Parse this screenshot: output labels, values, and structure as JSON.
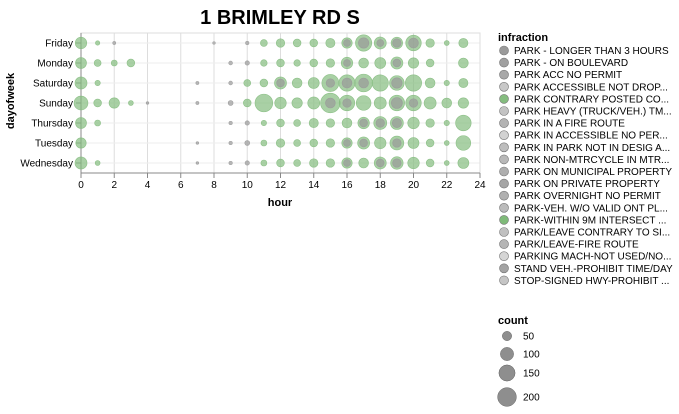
{
  "chart_data": {
    "type": "scatter",
    "title": "1 BRIMLEY RD S",
    "xlabel": "hour",
    "ylabel": "dayofweek",
    "xlim": [
      0,
      24
    ],
    "x_ticks": [
      0,
      2,
      4,
      6,
      8,
      10,
      12,
      14,
      16,
      18,
      20,
      22,
      24
    ],
    "categories": [
      "Friday",
      "Monday",
      "Saturday",
      "Sunday",
      "Thursday",
      "Tuesday",
      "Wednesday"
    ],
    "grid": true,
    "legend": {
      "position": "right",
      "color_title": "infraction",
      "color_items": [
        {
          "label": "PARK - LONGER THAN 3 HOURS",
          "color": "#9a9a9a"
        },
        {
          "label": "PARK - ON BOULEVARD",
          "color": "#a0a0a0"
        },
        {
          "label": "PARK ACC NO PERMIT",
          "color": "#a8a8a8"
        },
        {
          "label": "PARK ACCESSIBLE NOT DROP...",
          "color": "#c8c8c8"
        },
        {
          "label": "PARK CONTRARY POSTED CO...",
          "color": "#85bc7f"
        },
        {
          "label": "PARK HEAVY (TRUCK/VEH.) TM...",
          "color": "#c3c3c3"
        },
        {
          "label": "PARK IN A FIRE ROUTE",
          "color": "#b3b3b3"
        },
        {
          "label": "PARK IN ACCESSIBLE NO PER...",
          "color": "#d2d2d2"
        },
        {
          "label": "PARK IN PARK NOT IN DESIG A...",
          "color": "#bdbdbd"
        },
        {
          "label": "PARK NON-MTRCYCLE IN MTR...",
          "color": "#b8b8b8"
        },
        {
          "label": "PARK ON MUNICIPAL PROPERTY",
          "color": "#aeaeae"
        },
        {
          "label": "PARK ON PRIVATE PROPERTY",
          "color": "#a5a5a5"
        },
        {
          "label": "PARK OVERNIGHT NO PERMIT",
          "color": "#b0b0b0"
        },
        {
          "label": "PARK-VEH. W/O VALID ONT PL...",
          "color": "#bbbbbb"
        },
        {
          "label": "PARK-WITHIN 9M INTERSECT ...",
          "color": "#7fba79"
        },
        {
          "label": "PARK/LEAVE CONTRARY TO SI...",
          "color": "#c0c0c0"
        },
        {
          "label": "PARK/LEAVE-FIRE ROUTE",
          "color": "#b5b5b5"
        },
        {
          "label": "PARKING MACH-NOT USED/NO...",
          "color": "#d5d5d5"
        },
        {
          "label": "STAND VEH.-PROHIBIT TIME/DAY",
          "color": "#a3a3a3"
        },
        {
          "label": "STOP-SIGNED HWY-PROHIBIT ...",
          "color": "#c5c5c5"
        }
      ],
      "size_title": "count",
      "size_items": [
        50,
        100,
        150,
        200
      ]
    },
    "points": [
      {
        "day": "Friday",
        "hour": 0,
        "count": 55,
        "color": "#85bc7f"
      },
      {
        "day": "Friday",
        "hour": 1,
        "count": 8,
        "color": "#85bc7f"
      },
      {
        "day": "Friday",
        "hour": 2,
        "count": 4,
        "color": "#9a9a9a"
      },
      {
        "day": "Friday",
        "hour": 8,
        "count": 3,
        "color": "#a0a0a0"
      },
      {
        "day": "Friday",
        "hour": 10,
        "count": 5,
        "color": "#9a9a9a"
      },
      {
        "day": "Friday",
        "hour": 11,
        "count": 20,
        "color": "#85bc7f"
      },
      {
        "day": "Friday",
        "hour": 12,
        "count": 30,
        "color": "#85bc7f"
      },
      {
        "day": "Friday",
        "hour": 13,
        "count": 25,
        "color": "#85bc7f"
      },
      {
        "day": "Friday",
        "hour": 14,
        "count": 25,
        "color": "#85bc7f"
      },
      {
        "day": "Friday",
        "hour": 15,
        "count": 35,
        "color": "#85bc7f"
      },
      {
        "day": "Friday",
        "hour": 16,
        "count": 45,
        "color": "#85bc7f"
      },
      {
        "day": "Friday",
        "hour": 17,
        "count": 110,
        "color": "#85bc7f"
      },
      {
        "day": "Friday",
        "hour": 18,
        "count": 60,
        "color": "#85bc7f"
      },
      {
        "day": "Friday",
        "hour": 19,
        "count": 55,
        "color": "#85bc7f"
      },
      {
        "day": "Friday",
        "hour": 20,
        "count": 100,
        "color": "#85bc7f"
      },
      {
        "day": "Friday",
        "hour": 21,
        "count": 30,
        "color": "#85bc7f"
      },
      {
        "day": "Friday",
        "hour": 22,
        "count": 10,
        "color": "#85bc7f"
      },
      {
        "day": "Friday",
        "hour": 23,
        "count": 35,
        "color": "#85bc7f"
      },
      {
        "day": "Friday",
        "hour": 16,
        "count": 20,
        "color": "#9a9a9a"
      },
      {
        "day": "Friday",
        "hour": 17,
        "count": 45,
        "color": "#9a9a9a"
      },
      {
        "day": "Friday",
        "hour": 18,
        "count": 20,
        "color": "#9a9a9a"
      },
      {
        "day": "Friday",
        "hour": 19,
        "count": 30,
        "color": "#9a9a9a"
      },
      {
        "day": "Friday",
        "hour": 20,
        "count": 40,
        "color": "#9a9a9a"
      },
      {
        "day": "Monday",
        "hour": 0,
        "count": 50,
        "color": "#85bc7f"
      },
      {
        "day": "Monday",
        "hour": 1,
        "count": 20,
        "color": "#85bc7f"
      },
      {
        "day": "Monday",
        "hour": 2,
        "count": 15,
        "color": "#85bc7f"
      },
      {
        "day": "Monday",
        "hour": 3,
        "count": 25,
        "color": "#85bc7f"
      },
      {
        "day": "Monday",
        "hour": 9,
        "count": 6,
        "color": "#9a9a9a"
      },
      {
        "day": "Monday",
        "hour": 10,
        "count": 8,
        "color": "#9a9a9a"
      },
      {
        "day": "Monday",
        "hour": 11,
        "count": 18,
        "color": "#85bc7f"
      },
      {
        "day": "Monday",
        "hour": 12,
        "count": 25,
        "color": "#85bc7f"
      },
      {
        "day": "Monday",
        "hour": 13,
        "count": 18,
        "color": "#85bc7f"
      },
      {
        "day": "Monday",
        "hour": 14,
        "count": 25,
        "color": "#85bc7f"
      },
      {
        "day": "Monday",
        "hour": 15,
        "count": 30,
        "color": "#85bc7f"
      },
      {
        "day": "Monday",
        "hour": 16,
        "count": 55,
        "color": "#85bc7f"
      },
      {
        "day": "Monday",
        "hour": 17,
        "count": 40,
        "color": "#85bc7f"
      },
      {
        "day": "Monday",
        "hour": 18,
        "count": 50,
        "color": "#85bc7f"
      },
      {
        "day": "Monday",
        "hour": 19,
        "count": 60,
        "color": "#85bc7f"
      },
      {
        "day": "Monday",
        "hour": 20,
        "count": 45,
        "color": "#85bc7f"
      },
      {
        "day": "Monday",
        "hour": 21,
        "count": 25,
        "color": "#85bc7f"
      },
      {
        "day": "Monday",
        "hour": 23,
        "count": 40,
        "color": "#85bc7f"
      },
      {
        "day": "Monday",
        "hour": 16,
        "count": 20,
        "color": "#9a9a9a"
      },
      {
        "day": "Monday",
        "hour": 19,
        "count": 25,
        "color": "#9a9a9a"
      },
      {
        "day": "Saturday",
        "hour": 0,
        "count": 60,
        "color": "#85bc7f"
      },
      {
        "day": "Saturday",
        "hour": 1,
        "count": 12,
        "color": "#85bc7f"
      },
      {
        "day": "Saturday",
        "hour": 7,
        "count": 4,
        "color": "#9a9a9a"
      },
      {
        "day": "Saturday",
        "hour": 9,
        "count": 6,
        "color": "#9a9a9a"
      },
      {
        "day": "Saturday",
        "hour": 10,
        "count": 20,
        "color": "#85bc7f"
      },
      {
        "day": "Saturday",
        "hour": 11,
        "count": 25,
        "color": "#85bc7f"
      },
      {
        "day": "Saturday",
        "hour": 12,
        "count": 60,
        "color": "#85bc7f"
      },
      {
        "day": "Saturday",
        "hour": 13,
        "count": 40,
        "color": "#85bc7f"
      },
      {
        "day": "Saturday",
        "hour": 14,
        "count": 50,
        "color": "#85bc7f"
      },
      {
        "day": "Saturday",
        "hour": 15,
        "count": 120,
        "color": "#85bc7f"
      },
      {
        "day": "Saturday",
        "hour": 16,
        "count": 110,
        "color": "#85bc7f"
      },
      {
        "day": "Saturday",
        "hour": 17,
        "count": 130,
        "color": "#85bc7f"
      },
      {
        "day": "Saturday",
        "hour": 18,
        "count": 110,
        "color": "#85bc7f"
      },
      {
        "day": "Saturday",
        "hour": 19,
        "count": 90,
        "color": "#85bc7f"
      },
      {
        "day": "Saturday",
        "hour": 20,
        "count": 110,
        "color": "#85bc7f"
      },
      {
        "day": "Saturday",
        "hour": 21,
        "count": 40,
        "color": "#85bc7f"
      },
      {
        "day": "Saturday",
        "hour": 22,
        "count": 12,
        "color": "#85bc7f"
      },
      {
        "day": "Saturday",
        "hour": 23,
        "count": 35,
        "color": "#85bc7f"
      },
      {
        "day": "Saturday",
        "hour": 12,
        "count": 25,
        "color": "#9a9a9a"
      },
      {
        "day": "Saturday",
        "hour": 15,
        "count": 30,
        "color": "#9a9a9a"
      },
      {
        "day": "Saturday",
        "hour": 16,
        "count": 40,
        "color": "#9a9a9a"
      },
      {
        "day": "Saturday",
        "hour": 17,
        "count": 40,
        "color": "#9a9a9a"
      },
      {
        "day": "Saturday",
        "hour": 19,
        "count": 45,
        "color": "#9a9a9a"
      },
      {
        "day": "Sunday",
        "hour": 0,
        "count": 80,
        "color": "#85bc7f"
      },
      {
        "day": "Sunday",
        "hour": 1,
        "count": 25,
        "color": "#85bc7f"
      },
      {
        "day": "Sunday",
        "hour": 2,
        "count": 45,
        "color": "#85bc7f"
      },
      {
        "day": "Sunday",
        "hour": 3,
        "count": 10,
        "color": "#85bc7f"
      },
      {
        "day": "Sunday",
        "hour": 4,
        "count": 3,
        "color": "#9a9a9a"
      },
      {
        "day": "Sunday",
        "hour": 7,
        "count": 4,
        "color": "#9a9a9a"
      },
      {
        "day": "Sunday",
        "hour": 9,
        "count": 10,
        "color": "#9a9a9a"
      },
      {
        "day": "Sunday",
        "hour": 10,
        "count": 25,
        "color": "#85bc7f"
      },
      {
        "day": "Sunday",
        "hour": 11,
        "count": 130,
        "color": "#85bc7f"
      },
      {
        "day": "Sunday",
        "hour": 12,
        "count": 55,
        "color": "#85bc7f"
      },
      {
        "day": "Sunday",
        "hour": 13,
        "count": 45,
        "color": "#85bc7f"
      },
      {
        "day": "Sunday",
        "hour": 14,
        "count": 60,
        "color": "#85bc7f"
      },
      {
        "day": "Sunday",
        "hour": 15,
        "count": 160,
        "color": "#85bc7f"
      },
      {
        "day": "Sunday",
        "hour": 16,
        "count": 100,
        "color": "#85bc7f"
      },
      {
        "day": "Sunday",
        "hour": 17,
        "count": 90,
        "color": "#85bc7f"
      },
      {
        "day": "Sunday",
        "hour": 18,
        "count": 60,
        "color": "#85bc7f"
      },
      {
        "day": "Sunday",
        "hour": 19,
        "count": 100,
        "color": "#85bc7f"
      },
      {
        "day": "Sunday",
        "hour": 20,
        "count": 100,
        "color": "#85bc7f"
      },
      {
        "day": "Sunday",
        "hour": 21,
        "count": 60,
        "color": "#85bc7f"
      },
      {
        "day": "Sunday",
        "hour": 22,
        "count": 40,
        "color": "#85bc7f"
      },
      {
        "day": "Sunday",
        "hour": 23,
        "count": 45,
        "color": "#85bc7f"
      },
      {
        "day": "Sunday",
        "hour": 15,
        "count": 40,
        "color": "#9a9a9a"
      },
      {
        "day": "Sunday",
        "hour": 16,
        "count": 30,
        "color": "#9a9a9a"
      },
      {
        "day": "Sunday",
        "hour": 19,
        "count": 50,
        "color": "#9a9a9a"
      },
      {
        "day": "Sunday",
        "hour": 20,
        "count": 30,
        "color": "#9a9a9a"
      },
      {
        "day": "Thursday",
        "hour": 0,
        "count": 50,
        "color": "#85bc7f"
      },
      {
        "day": "Thursday",
        "hour": 1,
        "count": 15,
        "color": "#85bc7f"
      },
      {
        "day": "Thursday",
        "hour": 9,
        "count": 5,
        "color": "#9a9a9a"
      },
      {
        "day": "Thursday",
        "hour": 10,
        "count": 8,
        "color": "#9a9a9a"
      },
      {
        "day": "Thursday",
        "hour": 11,
        "count": 12,
        "color": "#85bc7f"
      },
      {
        "day": "Thursday",
        "hour": 12,
        "count": 25,
        "color": "#85bc7f"
      },
      {
        "day": "Thursday",
        "hour": 13,
        "count": 20,
        "color": "#85bc7f"
      },
      {
        "day": "Thursday",
        "hour": 14,
        "count": 35,
        "color": "#85bc7f"
      },
      {
        "day": "Thursday",
        "hour": 15,
        "count": 30,
        "color": "#85bc7f"
      },
      {
        "day": "Thursday",
        "hour": 16,
        "count": 40,
        "color": "#85bc7f"
      },
      {
        "day": "Thursday",
        "hour": 17,
        "count": 55,
        "color": "#85bc7f"
      },
      {
        "day": "Thursday",
        "hour": 18,
        "count": 70,
        "color": "#85bc7f"
      },
      {
        "day": "Thursday",
        "hour": 19,
        "count": 70,
        "color": "#85bc7f"
      },
      {
        "day": "Thursday",
        "hour": 20,
        "count": 55,
        "color": "#85bc7f"
      },
      {
        "day": "Thursday",
        "hour": 21,
        "count": 30,
        "color": "#85bc7f"
      },
      {
        "day": "Thursday",
        "hour": 22,
        "count": 12,
        "color": "#85bc7f"
      },
      {
        "day": "Thursday",
        "hour": 23,
        "count": 100,
        "color": "#85bc7f"
      },
      {
        "day": "Thursday",
        "hour": 17,
        "count": 25,
        "color": "#9a9a9a"
      },
      {
        "day": "Thursday",
        "hour": 18,
        "count": 30,
        "color": "#9a9a9a"
      },
      {
        "day": "Thursday",
        "hour": 19,
        "count": 35,
        "color": "#9a9a9a"
      },
      {
        "day": "Tuesday",
        "hour": 0,
        "count": 45,
        "color": "#85bc7f"
      },
      {
        "day": "Tuesday",
        "hour": 7,
        "count": 3,
        "color": "#9a9a9a"
      },
      {
        "day": "Tuesday",
        "hour": 9,
        "count": 5,
        "color": "#9a9a9a"
      },
      {
        "day": "Tuesday",
        "hour": 10,
        "count": 10,
        "color": "#9a9a9a"
      },
      {
        "day": "Tuesday",
        "hour": 11,
        "count": 15,
        "color": "#85bc7f"
      },
      {
        "day": "Tuesday",
        "hour": 12,
        "count": 30,
        "color": "#85bc7f"
      },
      {
        "day": "Tuesday",
        "hour": 13,
        "count": 20,
        "color": "#85bc7f"
      },
      {
        "day": "Tuesday",
        "hour": 14,
        "count": 25,
        "color": "#85bc7f"
      },
      {
        "day": "Tuesday",
        "hour": 15,
        "count": 30,
        "color": "#85bc7f"
      },
      {
        "day": "Tuesday",
        "hour": 16,
        "count": 45,
        "color": "#85bc7f"
      },
      {
        "day": "Tuesday",
        "hour": 17,
        "count": 60,
        "color": "#85bc7f"
      },
      {
        "day": "Tuesday",
        "hour": 18,
        "count": 55,
        "color": "#85bc7f"
      },
      {
        "day": "Tuesday",
        "hour": 19,
        "count": 80,
        "color": "#85bc7f"
      },
      {
        "day": "Tuesday",
        "hour": 20,
        "count": 50,
        "color": "#85bc7f"
      },
      {
        "day": "Tuesday",
        "hour": 21,
        "count": 25,
        "color": "#85bc7f"
      },
      {
        "day": "Tuesday",
        "hour": 22,
        "count": 10,
        "color": "#85bc7f"
      },
      {
        "day": "Tuesday",
        "hour": 23,
        "count": 90,
        "color": "#85bc7f"
      },
      {
        "day": "Tuesday",
        "hour": 16,
        "count": 20,
        "color": "#9a9a9a"
      },
      {
        "day": "Tuesday",
        "hour": 17,
        "count": 25,
        "color": "#9a9a9a"
      },
      {
        "day": "Tuesday",
        "hour": 19,
        "count": 30,
        "color": "#9a9a9a"
      },
      {
        "day": "Wednesday",
        "hour": 0,
        "count": 60,
        "color": "#85bc7f"
      },
      {
        "day": "Wednesday",
        "hour": 1,
        "count": 10,
        "color": "#85bc7f"
      },
      {
        "day": "Wednesday",
        "hour": 7,
        "count": 3,
        "color": "#9a9a9a"
      },
      {
        "day": "Wednesday",
        "hour": 9,
        "count": 5,
        "color": "#9a9a9a"
      },
      {
        "day": "Wednesday",
        "hour": 10,
        "count": 8,
        "color": "#9a9a9a"
      },
      {
        "day": "Wednesday",
        "hour": 11,
        "count": 15,
        "color": "#85bc7f"
      },
      {
        "day": "Wednesday",
        "hour": 12,
        "count": 25,
        "color": "#85bc7f"
      },
      {
        "day": "Wednesday",
        "hour": 13,
        "count": 20,
        "color": "#85bc7f"
      },
      {
        "day": "Wednesday",
        "hour": 14,
        "count": 30,
        "color": "#85bc7f"
      },
      {
        "day": "Wednesday",
        "hour": 15,
        "count": 30,
        "color": "#85bc7f"
      },
      {
        "day": "Wednesday",
        "hour": 16,
        "count": 45,
        "color": "#85bc7f"
      },
      {
        "day": "Wednesday",
        "hour": 17,
        "count": 40,
        "color": "#85bc7f"
      },
      {
        "day": "Wednesday",
        "hour": 18,
        "count": 60,
        "color": "#85bc7f"
      },
      {
        "day": "Wednesday",
        "hour": 19,
        "count": 65,
        "color": "#85bc7f"
      },
      {
        "day": "Wednesday",
        "hour": 20,
        "count": 55,
        "color": "#85bc7f"
      },
      {
        "day": "Wednesday",
        "hour": 21,
        "count": 25,
        "color": "#85bc7f"
      },
      {
        "day": "Wednesday",
        "hour": 22,
        "count": 10,
        "color": "#85bc7f"
      },
      {
        "day": "Wednesday",
        "hour": 23,
        "count": 50,
        "color": "#85bc7f"
      },
      {
        "day": "Wednesday",
        "hour": 16,
        "count": 20,
        "color": "#9a9a9a"
      },
      {
        "day": "Wednesday",
        "hour": 18,
        "count": 25,
        "color": "#9a9a9a"
      },
      {
        "day": "Wednesday",
        "hour": 19,
        "count": 30,
        "color": "#9a9a9a"
      }
    ]
  }
}
